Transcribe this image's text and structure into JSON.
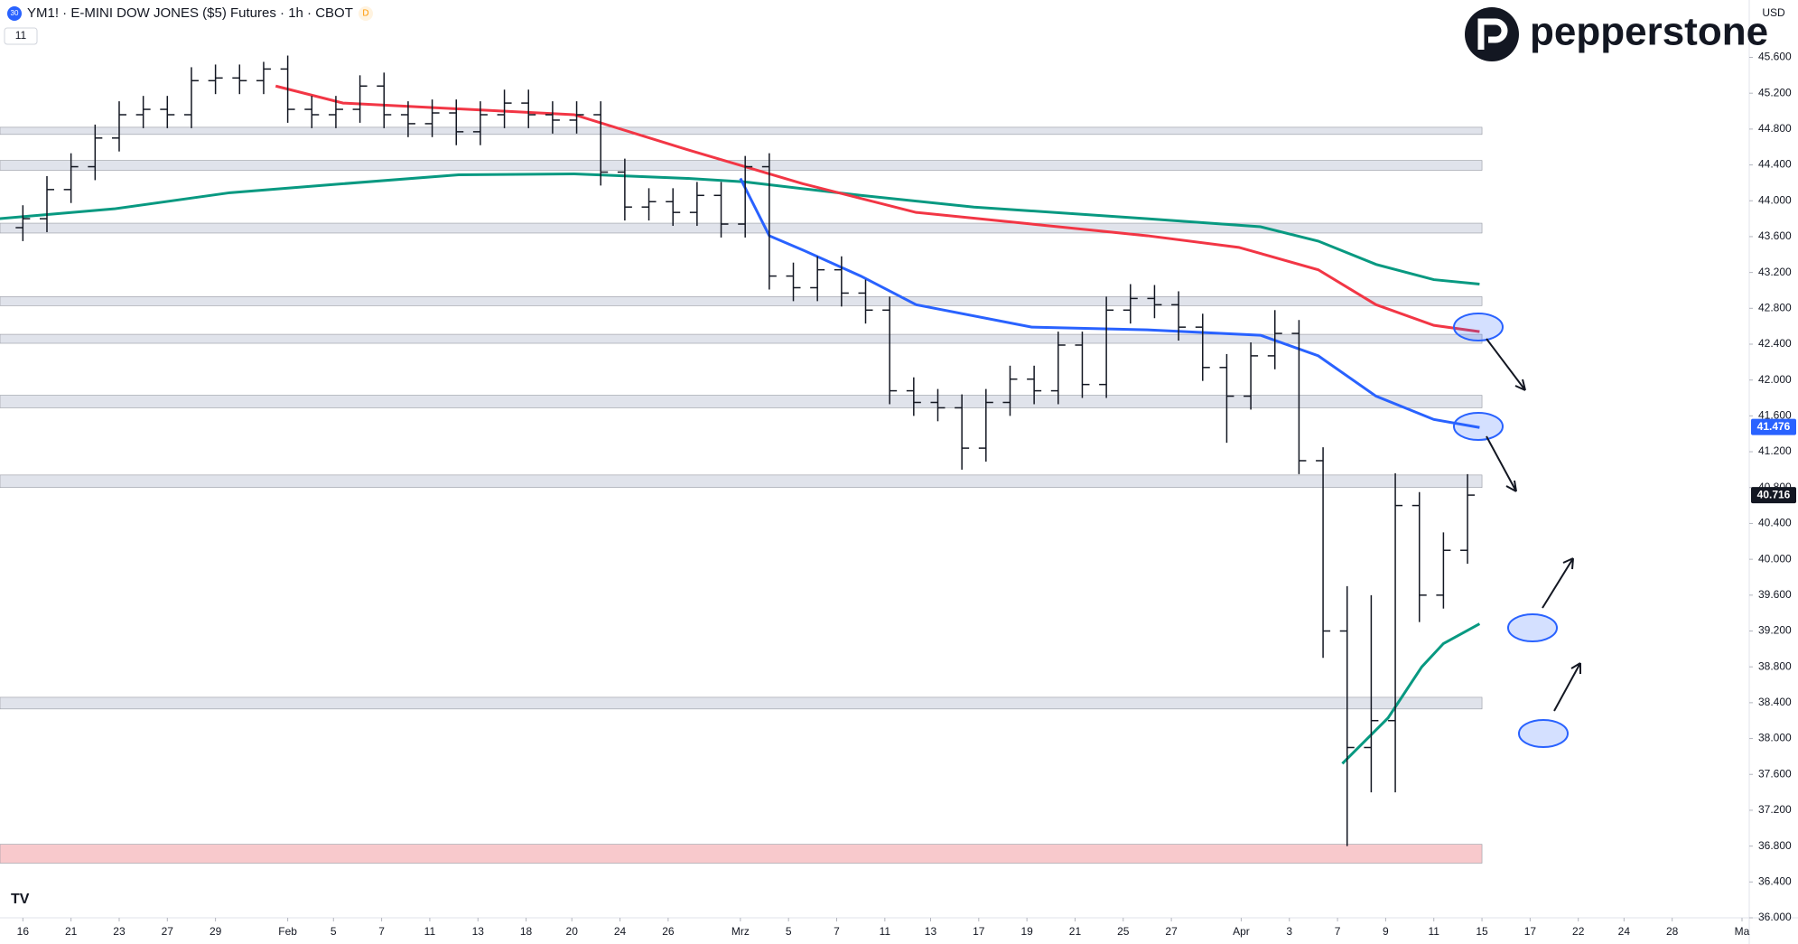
{
  "header": {
    "badge": "30",
    "title": "YM1! · E-MINI DOW JONES ($5) Futures · 1h · CBOT",
    "source_badge": "D",
    "indicator_count": "11",
    "currency": "USD",
    "brand": "pepperstone"
  },
  "chart_data": {
    "type": "ohlc",
    "color": "#131722",
    "xlim": [
      -0.95,
      71.7
    ],
    "ylim": [
      36000,
      46240
    ],
    "xticks": [
      {
        "value": 0,
        "label": "16"
      },
      {
        "value": 2,
        "label": "21"
      },
      {
        "value": 4,
        "label": "23"
      },
      {
        "value": 6,
        "label": "27"
      },
      {
        "value": 8,
        "label": "29"
      },
      {
        "value": 11,
        "label": "Feb"
      },
      {
        "value": 12.9,
        "label": "5"
      },
      {
        "value": 14.9,
        "label": "7"
      },
      {
        "value": 16.9,
        "label": "11"
      },
      {
        "value": 18.9,
        "label": "13"
      },
      {
        "value": 20.9,
        "label": "18"
      },
      {
        "value": 22.8,
        "label": "20"
      },
      {
        "value": 24.8,
        "label": "24"
      },
      {
        "value": 26.8,
        "label": "26"
      },
      {
        "value": 29.8,
        "label": "Mrz"
      },
      {
        "value": 31.8,
        "label": "5"
      },
      {
        "value": 33.8,
        "label": "7"
      },
      {
        "value": 35.8,
        "label": "11"
      },
      {
        "value": 37.7,
        "label": "13"
      },
      {
        "value": 39.7,
        "label": "17"
      },
      {
        "value": 41.7,
        "label": "19"
      },
      {
        "value": 43.7,
        "label": "21"
      },
      {
        "value": 45.7,
        "label": "25"
      },
      {
        "value": 47.7,
        "label": "27"
      },
      {
        "value": 50.6,
        "label": "Apr"
      },
      {
        "value": 52.6,
        "label": "3"
      },
      {
        "value": 54.6,
        "label": "7"
      },
      {
        "value": 56.6,
        "label": "9"
      },
      {
        "value": 58.6,
        "label": "11"
      },
      {
        "value": 60.6,
        "label": "15"
      },
      {
        "value": 62.6,
        "label": "17"
      },
      {
        "value": 64.6,
        "label": "22"
      },
      {
        "value": 66.5,
        "label": "24"
      },
      {
        "value": 68.5,
        "label": "28"
      },
      {
        "value": 71.4,
        "label": "Ma"
      }
    ],
    "yticks": [
      {
        "value": 36000,
        "label": "36.000"
      },
      {
        "value": 36400,
        "label": "36.400"
      },
      {
        "value": 36800,
        "label": "36.800"
      },
      {
        "value": 37200,
        "label": "37.200"
      },
      {
        "value": 37600,
        "label": "37.600"
      },
      {
        "value": 38000,
        "label": "38.000"
      },
      {
        "value": 38400,
        "label": "38.400"
      },
      {
        "value": 38800,
        "label": "38.800"
      },
      {
        "value": 39200,
        "label": "39.200"
      },
      {
        "value": 39600,
        "label": "39.600"
      },
      {
        "value": 40000,
        "label": "40.000"
      },
      {
        "value": 40400,
        "label": "40.400"
      },
      {
        "value": 40800,
        "label": "40.800"
      },
      {
        "value": 41200,
        "label": "41.200"
      },
      {
        "value": 41600,
        "label": "41.600"
      },
      {
        "value": 42000,
        "label": "42.000"
      },
      {
        "value": 42400,
        "label": "42.400"
      },
      {
        "value": 42800,
        "label": "42.800"
      },
      {
        "value": 43200,
        "label": "43.200"
      },
      {
        "value": 43600,
        "label": "43.600"
      },
      {
        "value": 44000,
        "label": "44.000"
      },
      {
        "value": 44400,
        "label": "44.400"
      },
      {
        "value": 44800,
        "label": "44.800"
      },
      {
        "value": 45200,
        "label": "45.200"
      },
      {
        "value": 45600,
        "label": "45.600"
      }
    ],
    "x": [
      0,
      1,
      2,
      3,
      4,
      5,
      6,
      7,
      8,
      9,
      10,
      11,
      12,
      13,
      14,
      15,
      16,
      17,
      18,
      19,
      20,
      21,
      22,
      23,
      24,
      25,
      26,
      27,
      28,
      29,
      30,
      31,
      32,
      33,
      34,
      35,
      36,
      37,
      38,
      39,
      40,
      41,
      42,
      43,
      44,
      45,
      46,
      47,
      48,
      49,
      50,
      51,
      52,
      53,
      54,
      55,
      56,
      57,
      58,
      59,
      60
    ],
    "open": [
      43700,
      43800,
      44125,
      44380,
      44700,
      44960,
      45020,
      44960,
      45340,
      45370,
      45340,
      45470,
      45020,
      44960,
      45020,
      45280,
      44960,
      44860,
      44980,
      44770,
      44960,
      45090,
      44960,
      44900,
      44960,
      44320,
      43930,
      43990,
      43870,
      44060,
      43740,
      44380,
      43160,
      43030,
      43230,
      42970,
      42780,
      41880,
      41750,
      41690,
      41240,
      41750,
      42010,
      41880,
      42390,
      41950,
      42780,
      42910,
      42840,
      42590,
      42140,
      41820,
      42270,
      42520,
      41100,
      39200,
      37900,
      38200,
      40600,
      39600,
      40100
    ],
    "high": [
      43950,
      44275,
      44530,
      44850,
      45110,
      45170,
      45170,
      45490,
      45520,
      45520,
      45550,
      45620,
      45170,
      45170,
      45400,
      45430,
      45110,
      45130,
      45130,
      45110,
      45240,
      45240,
      45110,
      45110,
      45110,
      44470,
      44140,
      44140,
      44210,
      44210,
      44500,
      44530,
      43310,
      43380,
      43380,
      43120,
      42930,
      42030,
      41900,
      41840,
      41900,
      42160,
      42160,
      42540,
      42540,
      42930,
      43070,
      43060,
      42990,
      42740,
      42290,
      42420,
      42780,
      42670,
      41250,
      39700,
      39600,
      40960,
      40750,
      40300,
      40950
    ],
    "low": [
      43550,
      43650,
      43975,
      44230,
      44550,
      44810,
      44810,
      44810,
      45190,
      45190,
      45190,
      44870,
      44810,
      44810,
      44870,
      44810,
      44710,
      44710,
      44620,
      44620,
      44810,
      44810,
      44750,
      44750,
      44170,
      43780,
      43780,
      43720,
      43720,
      43590,
      43590,
      43010,
      42880,
      42880,
      42820,
      42630,
      41730,
      41600,
      41540,
      41000,
      41090,
      41600,
      41730,
      41730,
      41800,
      41800,
      42630,
      42690,
      42440,
      41990,
      41300,
      41670,
      42120,
      40950,
      38900,
      36800,
      37400,
      37400,
      39300,
      39450,
      39950
    ],
    "close": [
      43800,
      44125,
      44380,
      44700,
      44960,
      45020,
      44960,
      45340,
      45370,
      45340,
      45470,
      45020,
      44960,
      45020,
      45280,
      44960,
      44860,
      44980,
      44770,
      44960,
      45090,
      44960,
      44900,
      44960,
      44320,
      43930,
      43990,
      43870,
      44060,
      43740,
      44380,
      43160,
      43030,
      43230,
      42970,
      42780,
      41880,
      41750,
      41690,
      41240,
      41750,
      42010,
      41880,
      42390,
      41950,
      42780,
      42910,
      42840,
      42590,
      42140,
      41820,
      42270,
      42520,
      41100,
      39200,
      37900,
      38200,
      40600,
      39600,
      40100,
      40716
    ],
    "overlays": [
      {
        "color": "#089981",
        "x": [
          -1,
          3.8,
          8.6,
          13.3,
          18.1,
          22.9,
          27.6,
          30,
          34.8,
          39.5,
          46.7,
          51.4,
          53.8,
          56.2,
          58.6,
          60.5
        ],
        "values": [
          43800,
          43910,
          44090,
          44190,
          44290,
          44300,
          44250,
          44210,
          44060,
          43930,
          43800,
          43710,
          43550,
          43290,
          43120,
          43070
        ]
      },
      {
        "color": "#f23645",
        "x": [
          10.5,
          13.3,
          22.9,
          27.6,
          32.4,
          37.1,
          41.9,
          46.7,
          50.5,
          53.8,
          56.2,
          58.6,
          60.5
        ],
        "values": [
          45280,
          45090,
          44960,
          44570,
          44190,
          43870,
          43740,
          43610,
          43480,
          43230,
          42840,
          42610,
          42540
        ]
      },
      {
        "color": "#2962ff",
        "x": [
          29.8,
          31,
          32.4,
          34.8,
          37.1,
          41.9,
          46.7,
          51.4,
          53.8,
          56.2,
          58.6,
          60.5
        ],
        "values": [
          44250,
          43610,
          43450,
          43160,
          42840,
          42590,
          42560,
          42500,
          42270,
          41820,
          41560,
          41470
        ]
      },
      {
        "color": "#089981",
        "x": [
          54.8,
          56.7,
          58.1,
          59,
          60.5
        ],
        "values": [
          37720,
          38230,
          38800,
          39060,
          39280
        ]
      }
    ],
    "zones": [
      {
        "range": [
          44740,
          44820
        ],
        "color": "#e0e3eb"
      },
      {
        "range": [
          44340,
          44450
        ],
        "color": "#e0e3eb"
      },
      {
        "range": [
          43640,
          43750
        ],
        "color": "#e0e3eb"
      },
      {
        "range": [
          42830,
          42930
        ],
        "color": "#e0e3eb"
      },
      {
        "range": [
          42410,
          42510
        ],
        "color": "#e0e3eb"
      },
      {
        "range": [
          41690,
          41830
        ],
        "color": "#e0e3eb"
      },
      {
        "range": [
          40800,
          40940
        ],
        "color": "#e0e3eb"
      },
      {
        "range": [
          38330,
          38460
        ],
        "color": "#e0e3eb"
      },
      {
        "range": [
          36610,
          36820
        ],
        "color": "#f8c9cc"
      }
    ],
    "price_labels": [
      {
        "value": 41476,
        "label": "41.476",
        "color": "#2962ff"
      },
      {
        "value": 40716,
        "label": "40.716",
        "color": "#131722"
      }
    ]
  }
}
